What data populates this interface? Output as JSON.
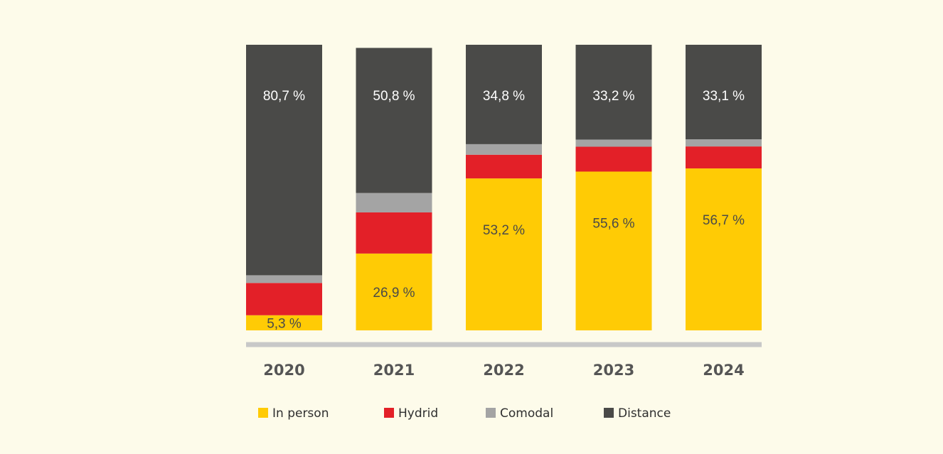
{
  "chart_data": {
    "type": "bar",
    "stacked": true,
    "percent_stacked": true,
    "categories": [
      "2020",
      "2021",
      "2022",
      "2023",
      "2024"
    ],
    "series": [
      {
        "name": "In person",
        "color": "#ffcb05",
        "values": [
          5.3,
          26.9,
          53.2,
          55.6,
          56.7
        ],
        "labels": [
          "5,3 %",
          "26,9 %",
          "53,2 %",
          "55,6 %",
          "56,7 %"
        ]
      },
      {
        "name": "Hydrid",
        "color": "#e32028",
        "values": [
          11.3,
          14.4,
          8.3,
          8.7,
          7.7
        ],
        "labels": [
          "",
          "",
          "",
          "",
          ""
        ]
      },
      {
        "name": "Comodal",
        "color": "#a4a4a4",
        "values": [
          2.7,
          6.8,
          3.7,
          2.5,
          2.5
        ],
        "labels": [
          "",
          "",
          "",
          "",
          ""
        ]
      },
      {
        "name": "Distance",
        "color": "#4a4a48",
        "values": [
          80.7,
          50.8,
          34.8,
          33.2,
          33.1
        ],
        "labels": [
          "80,7 %",
          "50,8 %",
          "34,8 %",
          "33,2 %",
          "33,1 %"
        ]
      }
    ],
    "ylim": [
      0,
      100
    ],
    "grid": false,
    "legend_position": "bottom",
    "axis_color": "#c8c8c8"
  }
}
